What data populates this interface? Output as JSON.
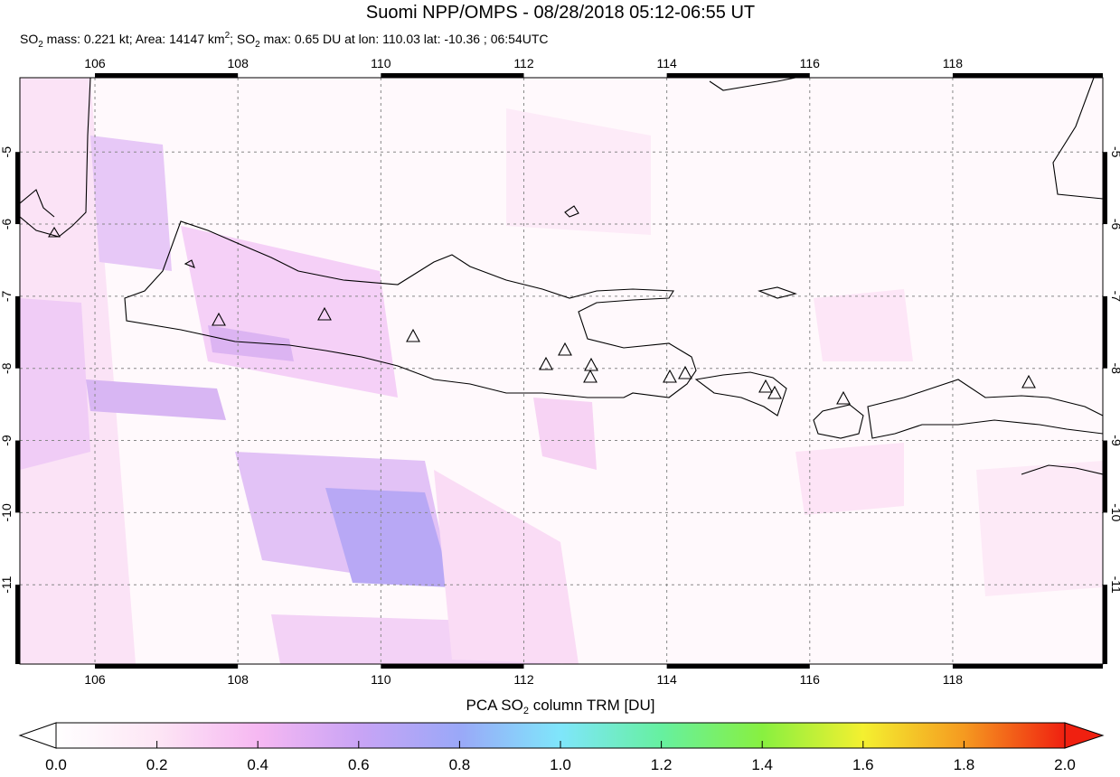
{
  "header": {
    "title": "Suomi NPP/OMPS - 08/28/2018 05:12-06:55 UT",
    "subtitle": [
      "SO",
      "2",
      " mass: 0.221 kt; Area: 14147 km",
      "2",
      "; SO",
      "2",
      " max: 0.65 DU at lon: 110.03 lat: -10.36 ; 06:54UTC"
    ]
  },
  "map": {
    "xlim": [
      104.95,
      120.1
    ],
    "ylim": [
      -12.1,
      -3.97
    ],
    "xticks": [
      106,
      108,
      110,
      112,
      114,
      116,
      118
    ],
    "yticks": [
      -5,
      -6,
      -7,
      -8,
      -9,
      -10,
      -11
    ],
    "grid": true
  },
  "colorbar": {
    "label": [
      "PCA SO",
      "2",
      " column TRM [DU]"
    ],
    "lim": [
      0,
      2
    ],
    "ticks": [
      {
        "value": 0,
        "label": "0.0"
      },
      0.2,
      0.4,
      0.6,
      0.8,
      {
        "value": 1,
        "label": "1.0"
      },
      1.2,
      1.4,
      1.6,
      1.8,
      {
        "value": 2,
        "label": "2.0"
      }
    ]
  }
}
